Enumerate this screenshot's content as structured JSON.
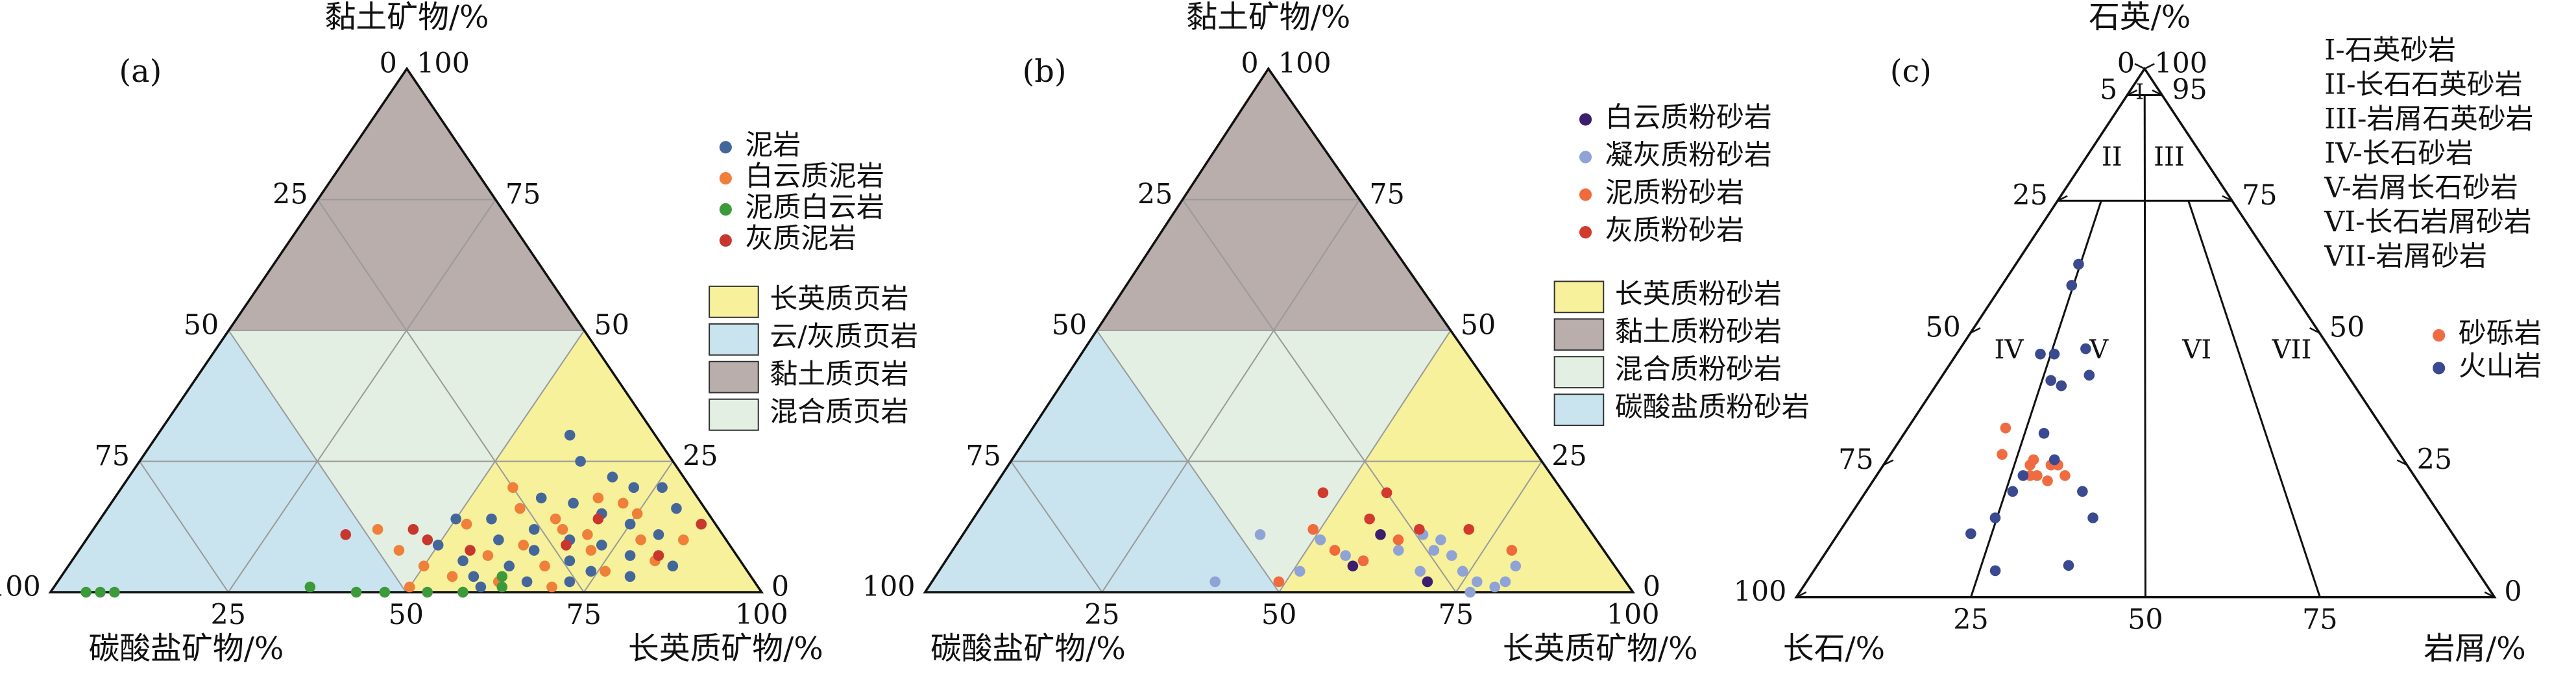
{
  "chart_data": [
    {
      "type": "ternary",
      "panel": "(a)",
      "top_label": "黏土矿物/%",
      "left_label": "碳酸盐矿物/%",
      "right_label": "长英质矿物/%",
      "left_ticks": [
        0,
        25,
        50,
        75,
        100
      ],
      "right_ticks": [
        100,
        75,
        50,
        25,
        0
      ],
      "bottom_ticks": [
        25,
        50,
        75,
        100
      ],
      "grid": true,
      "series": [
        {
          "name": "泥岩",
          "color": "#44679b",
          "values": [
            [
              30,
              58,
              12
            ],
            [
              25,
              62,
              13
            ],
            [
              22,
              68,
              10
            ],
            [
              20,
              72,
              8
            ],
            [
              18,
              60,
              22
            ],
            [
              17,
              65,
              18
            ],
            [
              15,
              70,
              15
            ],
            [
              14,
              55,
              31
            ],
            [
              13,
              75,
              12
            ],
            [
              12,
              62,
              26
            ],
            [
              11,
              80,
              9
            ],
            [
              10,
              58,
              32
            ],
            [
              10,
              68,
              22
            ],
            [
              9,
              73,
              18
            ],
            [
              8,
              64,
              28
            ],
            [
              7,
              78,
              15
            ],
            [
              6,
              55,
              39
            ],
            [
              6,
              70,
              24
            ],
            [
              5,
              85,
              10
            ],
            [
              5,
              62,
              33
            ],
            [
              4,
              74,
              22
            ],
            [
              3,
              58,
              39
            ],
            [
              3,
              80,
              17
            ],
            [
              2,
              66,
              32
            ],
            [
              2,
              72,
              26
            ],
            [
              1,
              60,
              39
            ],
            [
              20,
              76,
              4
            ],
            [
              16,
              80,
              4
            ],
            [
              14,
              50,
              36
            ],
            [
              9,
              50,
              41
            ]
          ]
        },
        {
          "name": "白云质泥岩",
          "color": "#f07f3a",
          "values": [
            [
              20,
              55,
              25
            ],
            [
              18,
              68,
              14
            ],
            [
              16,
              58,
              26
            ],
            [
              15,
              75,
              10
            ],
            [
              13,
              52,
              35
            ],
            [
              12,
              66,
              22
            ],
            [
              12,
              40,
              48
            ],
            [
              11,
              70,
              19
            ],
            [
              10,
              78,
              12
            ],
            [
              9,
              62,
              29
            ],
            [
              8,
              45,
              47
            ],
            [
              8,
              72,
              20
            ],
            [
              7,
              58,
              35
            ],
            [
              6,
              82,
              12
            ],
            [
              5,
              50,
              45
            ],
            [
              5,
              67,
              28
            ],
            [
              4,
              76,
              20
            ],
            [
              3,
              55,
              42
            ],
            [
              2,
              62,
              36
            ],
            [
              1,
              50,
              49
            ],
            [
              1,
              70,
              29
            ],
            [
              0,
              58,
              42
            ],
            [
              14,
              64,
              22
            ],
            [
              17,
              72,
              11
            ],
            [
              10,
              84,
              6
            ]
          ]
        },
        {
          "name": "泥质白云岩",
          "color": "#3d9a3a",
          "values": [
            [
              0,
              5,
              95
            ],
            [
              0,
              7,
              93
            ],
            [
              0,
              9,
              91
            ],
            [
              1,
              36,
              63
            ],
            [
              0,
              43,
              57
            ],
            [
              0,
              47,
              53
            ],
            [
              0,
              53,
              47
            ],
            [
              0,
              58,
              42
            ],
            [
              1,
              63,
              36
            ],
            [
              3,
              62,
              35
            ]
          ]
        },
        {
          "name": "灰质泥岩",
          "color": "#c8372d",
          "values": [
            [
              11,
              36,
              53
            ],
            [
              12,
              45,
              43
            ],
            [
              10,
              48,
              42
            ],
            [
              8,
              55,
              37
            ],
            [
              14,
              70,
              16
            ],
            [
              7,
              82,
              11
            ],
            [
              13,
              85,
              2
            ],
            [
              9,
              68,
              23
            ]
          ]
        }
      ],
      "regions": [
        {
          "name": "长英质页岩",
          "color": "#f7f19b"
        },
        {
          "name": "云/灰质页岩",
          "color": "#c9e4ee"
        },
        {
          "name": "黏土质页岩",
          "color": "#b9aeab"
        },
        {
          "name": "混合质页岩",
          "color": "#e3efe2"
        }
      ]
    },
    {
      "type": "ternary",
      "panel": "(b)",
      "top_label": "黏土矿物/%",
      "left_label": "碳酸盐矿物/%",
      "right_label": "长英质矿物/%",
      "left_ticks": [
        0,
        25,
        50,
        75,
        100
      ],
      "right_ticks": [
        100,
        75,
        50,
        25,
        0
      ],
      "bottom_ticks": [
        25,
        50,
        75,
        100
      ],
      "grid": true,
      "series": [
        {
          "name": "白云质粉砂岩",
          "color": "#3b1f6e",
          "values": [
            [
              11,
              59,
              30
            ],
            [
              5,
              58,
              37
            ],
            [
              2,
              70,
              28
            ]
          ]
        },
        {
          "name": "凝灰质粉砂岩",
          "color": "#8fa3d6",
          "values": [
            [
              11,
              42,
              47
            ],
            [
              2,
              40,
              58
            ],
            [
              4,
              51,
              45
            ],
            [
              10,
              51,
              39
            ],
            [
              7,
              56,
              37
            ],
            [
              8,
              63,
              29
            ],
            [
              4,
              68,
              28
            ],
            [
              8,
              68,
              24
            ],
            [
              7,
              71,
              22
            ],
            [
              4,
              74,
              22
            ],
            [
              2,
              77,
              21
            ],
            [
              1,
              80,
              19
            ],
            [
              2,
              81,
              17
            ],
            [
              5,
              81,
              14
            ],
            [
              10,
              68,
              22
            ],
            [
              0,
              77,
              23
            ],
            [
              11,
              65,
              24
            ]
          ]
        },
        {
          "name": "泥质粉砂岩",
          "color": "#f06a3c",
          "values": [
            [
              12,
              49,
              39
            ],
            [
              8,
              54,
              38
            ],
            [
              6,
              59,
              35
            ],
            [
              10,
              62,
              28
            ],
            [
              8,
              79,
              13
            ],
            [
              2,
              49,
              49
            ]
          ]
        },
        {
          "name": "灰质粉砂岩",
          "color": "#d23a2d",
          "values": [
            [
              19,
              47,
              34
            ],
            [
              19,
              56,
              25
            ],
            [
              12,
              64,
              24
            ],
            [
              12,
              71,
              17
            ],
            [
              14,
              56,
              30
            ]
          ]
        }
      ],
      "regions": [
        {
          "name": "长英质粉砂岩",
          "color": "#f7f19b"
        },
        {
          "name": "黏土质粉砂岩",
          "color": "#b9aeab"
        },
        {
          "name": "混合质粉砂岩",
          "color": "#e3efe2"
        },
        {
          "name": "碳酸盐质粉砂岩",
          "color": "#c9e4ee"
        }
      ]
    },
    {
      "type": "ternary",
      "panel": "(c)",
      "top_label": "石英/%",
      "left_label": "长石/%",
      "right_label": "岩屑/%",
      "left_ticks": [
        0,
        5,
        25,
        50,
        75,
        100
      ],
      "right_ticks": [
        100,
        95,
        75,
        50,
        25,
        0
      ],
      "bottom_ticks": [
        25,
        50,
        75
      ],
      "grid": false,
      "class_labels": [
        "I",
        "II",
        "III",
        "IV",
        "V",
        "VI",
        "VII"
      ],
      "legend_text": [
        "I-石英砂岩",
        "II-长石石英砂岩",
        "III-岩屑石英砂岩",
        "IV-长石砂岩",
        "V-岩屑长石砂岩",
        "VI-长石岩屑砂岩",
        "VII-岩屑砂岩"
      ],
      "series": [
        {
          "name": "砂砾岩",
          "color": "#ef6c42",
          "values": [
            [
              32,
              14,
              54
            ],
            [
              27,
              16,
              57
            ],
            [
              25,
              21,
              54
            ],
            [
              25,
              24,
              51
            ],
            [
              25,
              25,
              50
            ],
            [
              23,
              22,
              55
            ],
            [
              23,
              23,
              54
            ],
            [
              23,
              27,
              50
            ],
            [
              26,
              21,
              53
            ],
            [
              22,
              25,
              53
            ]
          ]
        },
        {
          "name": "火山岩",
          "color": "#3a4a90",
          "values": [
            [
              63,
              9,
              28
            ],
            [
              59,
              10,
              31
            ],
            [
              46,
              12,
              42
            ],
            [
              46,
              14,
              40
            ],
            [
              47,
              18,
              35
            ],
            [
              41,
              16,
              43
            ],
            [
              40,
              18,
              42
            ],
            [
              42,
              21,
              37
            ],
            [
              31,
              20,
              49
            ],
            [
              26,
              24,
              50
            ],
            [
              23,
              21,
              56
            ],
            [
              20,
              21,
              59
            ],
            [
              15,
              21,
              64
            ],
            [
              12,
              19,
              69
            ],
            [
              15,
              35,
              50
            ],
            [
              6,
              36,
              58
            ],
            [
              5,
              26,
              69
            ],
            [
              20,
              31,
              49
            ]
          ]
        }
      ]
    }
  ]
}
